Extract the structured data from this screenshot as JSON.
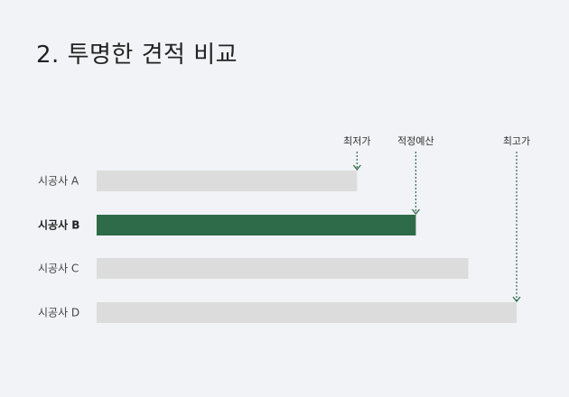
{
  "page": {
    "title": "2. 투명한 견적 비교"
  },
  "colors": {
    "background": "#f1f3f6",
    "bar_default": "#dcdcdc",
    "bar_highlight": "#2e6b48",
    "marker_line": "#2e6b48"
  },
  "chart_data": {
    "type": "bar",
    "orientation": "horizontal",
    "title": "",
    "xlabel": "",
    "ylabel": "",
    "categories": [
      "시공사 A",
      "시공사 B",
      "시공사 C",
      "시공사 D"
    ],
    "values": [
      0.62,
      0.76,
      0.885,
      1.0
    ],
    "highlight_index": 1,
    "xlim": [
      0,
      1.0
    ],
    "grid": false,
    "axis_ticks": false,
    "reference_markers": [
      {
        "label": "최저가",
        "value": 0.62
      },
      {
        "label": "적정예산",
        "value": 0.76
      },
      {
        "label": "최고가",
        "value": 1.0
      }
    ]
  }
}
